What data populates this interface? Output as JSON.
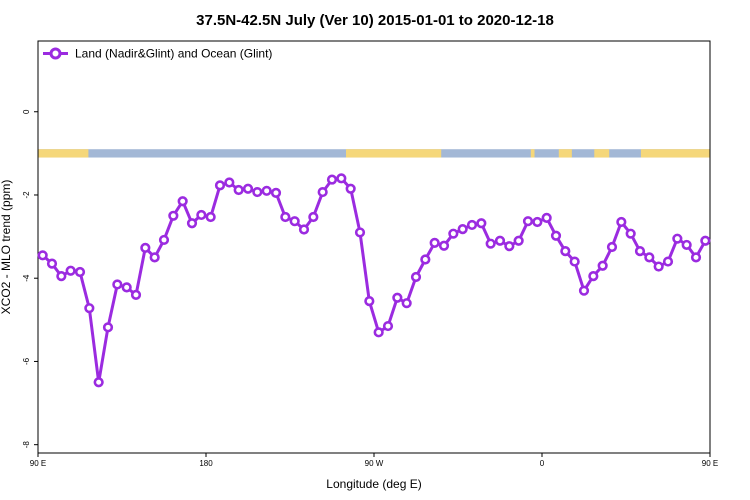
{
  "chart_data": {
    "type": "line",
    "title": "37.5N-42.5N July (Ver 10)   2015-01-01 to 2020-12-18",
    "xlabel": "Longitude (deg E)",
    "ylabel": "XCO2 - MLO trend (ppm)",
    "xlim": [
      90,
      450
    ],
    "ylim": [
      -8.2,
      1.7
    ],
    "x_ticks": [
      {
        "value": 90,
        "label": "90 E"
      },
      {
        "value": 180,
        "label": "180"
      },
      {
        "value": 270,
        "label": "90 W"
      },
      {
        "value": 360,
        "label": "0"
      },
      {
        "value": 450,
        "label": "90 E"
      }
    ],
    "y_ticks": [
      {
        "value": 0,
        "label": "0"
      },
      {
        "value": -2,
        "label": "-2"
      },
      {
        "value": -4,
        "label": "-4"
      },
      {
        "value": -6,
        "label": "-6"
      },
      {
        "value": -8,
        "label": "-8"
      }
    ],
    "grid": false,
    "legend_position": "top-left",
    "land_ocean_band": {
      "y_range": [
        -1.1,
        -0.9
      ],
      "land_color": "#f5d77a",
      "ocean_color": "#a3b8d6",
      "land_segments": [
        [
          90,
          117
        ],
        [
          255,
          306
        ],
        [
          354,
          356
        ],
        [
          369,
          376
        ],
        [
          388,
          396
        ],
        [
          413,
          467
        ]
      ]
    },
    "series": [
      {
        "name": "Land (Nadir&Glint) and Ocean (Glint)",
        "color": "#9b2be0",
        "x": [
          92.5,
          97.5,
          102.5,
          107.5,
          112.5,
          117.5,
          122.5,
          127.5,
          132.5,
          137.5,
          142.5,
          147.5,
          152.5,
          157.5,
          162.5,
          167.5,
          172.5,
          177.5,
          182.5,
          187.5,
          192.5,
          197.5,
          202.5,
          207.5,
          212.5,
          217.5,
          222.5,
          227.5,
          232.5,
          237.5,
          242.5,
          247.5,
          252.5,
          257.5,
          262.5,
          267.5,
          272.5,
          277.5,
          282.5,
          287.5,
          292.5,
          297.5,
          302.5,
          307.5,
          312.5,
          317.5,
          322.5,
          327.5,
          332.5,
          337.5,
          342.5,
          347.5,
          352.5,
          357.5,
          362.5,
          367.5,
          372.5,
          377.5,
          382.5,
          387.5,
          392.5,
          397.5,
          402.5,
          407.5,
          412.5,
          417.5,
          422.5,
          427.5,
          432.5,
          437.5,
          442.5,
          447.5
        ],
        "values": [
          -3.45,
          -3.65,
          -3.95,
          -3.82,
          -3.85,
          -4.72,
          -6.5,
          -5.18,
          -4.15,
          -4.22,
          -4.4,
          -3.27,
          -3.5,
          -3.08,
          -2.5,
          -2.15,
          -2.68,
          -2.48,
          -2.53,
          -1.77,
          -1.7,
          -1.88,
          -1.85,
          -1.93,
          -1.9,
          -1.95,
          -2.53,
          -2.63,
          -2.83,
          -2.53,
          -1.93,
          -1.63,
          -1.6,
          -1.85,
          -2.9,
          -4.55,
          -5.3,
          -5.15,
          -4.47,
          -4.6,
          -3.97,
          -3.55,
          -3.15,
          -3.22,
          -2.93,
          -2.82,
          -2.72,
          -2.68,
          -3.17,
          -3.1,
          -3.23,
          -3.1,
          -2.63,
          -2.65,
          -2.55,
          -2.98,
          -3.35,
          -3.6,
          -4.3,
          -3.95,
          -3.7,
          -3.25,
          -2.65,
          -2.93,
          -3.35,
          -3.5,
          -3.72,
          -3.6,
          -3.05,
          -3.2,
          -3.5,
          -3.1
        ]
      }
    ]
  }
}
